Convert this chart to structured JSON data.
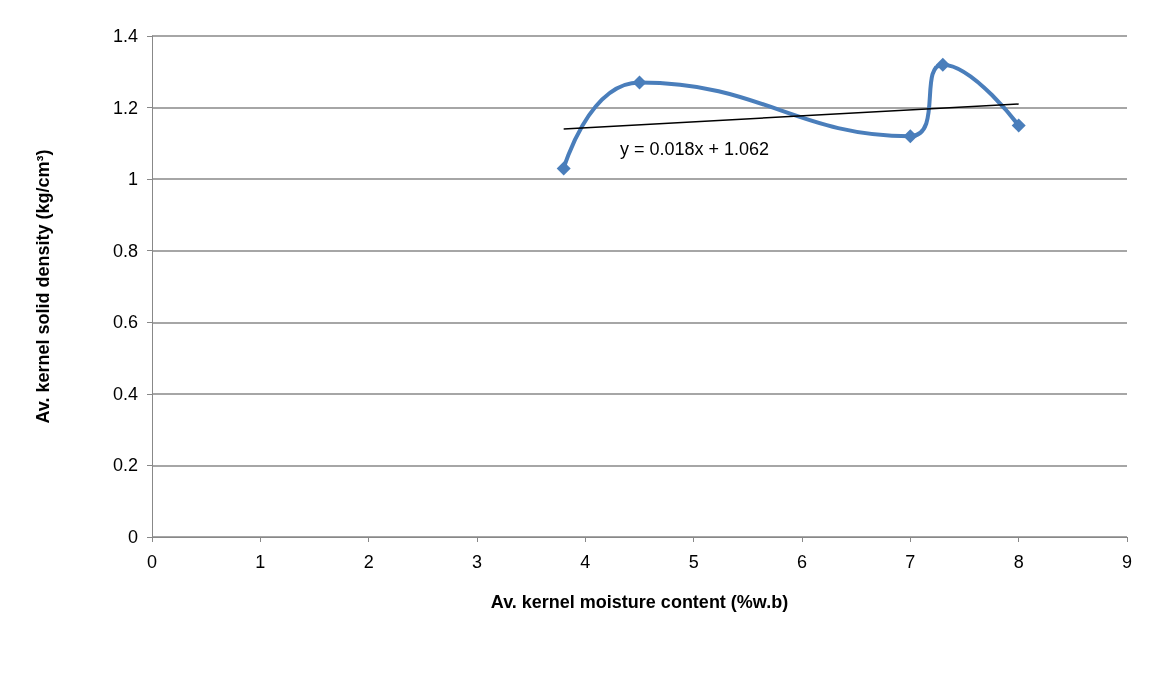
{
  "chart_data": {
    "type": "line",
    "xlabel": "Av. kernel moisture content (%w.b)",
    "ylabel": "Av. kernel solid density (kg/cm³)",
    "x": [
      3.8,
      4.5,
      7.0,
      7.3,
      8.0
    ],
    "series": [
      {
        "color": "#4a7ebb",
        "values": [
          1.03,
          1.27,
          1.12,
          1.32,
          1.15
        ],
        "marker": "diamond"
      },
      {
        "type": "line",
        "color": "#000000",
        "x": [
          3.8,
          8.0
        ],
        "values": [
          1.14,
          1.21
        ],
        "marker": "none"
      }
    ],
    "annotations": [
      "y = 0.018x + 1.062"
    ],
    "xlim": [
      0,
      9
    ],
    "xticks": [
      0,
      1,
      2,
      3,
      4,
      5,
      6,
      7,
      8,
      9
    ],
    "ylim": [
      0,
      1.4
    ],
    "yticks": [
      0,
      0.2,
      0.4,
      0.6,
      0.8,
      1,
      1.2,
      1.4
    ],
    "grid": "y"
  }
}
